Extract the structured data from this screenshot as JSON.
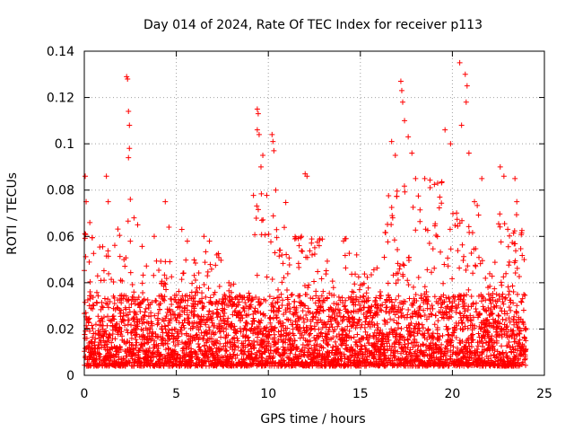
{
  "chart_data": {
    "type": "scatter",
    "title": "Day 014 of 2024, Rate Of TEC Index for receiver p113",
    "xlabel": "GPS time / hours",
    "ylabel": "ROTI / TECUs",
    "xlim": [
      0,
      25
    ],
    "ylim": [
      0,
      0.14
    ],
    "x_ticks": [
      0,
      5,
      10,
      15,
      20,
      25
    ],
    "x_tick_labels": [
      "0",
      "5",
      "10",
      "15",
      "20",
      "25"
    ],
    "y_ticks": [
      0,
      0.02,
      0.04,
      0.06,
      0.08,
      0.1,
      0.12,
      0.14
    ],
    "y_tick_labels": [
      "0",
      "0.02",
      "0.04",
      "0.06",
      "0.08",
      "0.1",
      "0.12",
      "0.14"
    ],
    "grid": true,
    "marker": "+",
    "marker_color": "#ff0000",
    "series": [
      {
        "name": "ROTI",
        "baseline_range": [
          0.004,
          0.035
        ],
        "notable_points": [
          {
            "x": 0.05,
            "y": 0.086
          },
          {
            "x": 0.1,
            "y": 0.075
          },
          {
            "x": 0.3,
            "y": 0.066
          },
          {
            "x": 1.2,
            "y": 0.086
          },
          {
            "x": 1.3,
            "y": 0.075
          },
          {
            "x": 2.3,
            "y": 0.129
          },
          {
            "x": 2.35,
            "y": 0.128
          },
          {
            "x": 2.4,
            "y": 0.114
          },
          {
            "x": 2.45,
            "y": 0.108
          },
          {
            "x": 2.45,
            "y": 0.098
          },
          {
            "x": 2.4,
            "y": 0.094
          },
          {
            "x": 2.5,
            "y": 0.076
          },
          {
            "x": 2.7,
            "y": 0.068
          },
          {
            "x": 2.9,
            "y": 0.065
          },
          {
            "x": 3.8,
            "y": 0.06
          },
          {
            "x": 4.4,
            "y": 0.075
          },
          {
            "x": 4.6,
            "y": 0.064
          },
          {
            "x": 5.3,
            "y": 0.063
          },
          {
            "x": 5.6,
            "y": 0.058
          },
          {
            "x": 6.5,
            "y": 0.06
          },
          {
            "x": 6.8,
            "y": 0.058
          },
          {
            "x": 7.2,
            "y": 0.052
          },
          {
            "x": 9.4,
            "y": 0.115
          },
          {
            "x": 9.45,
            "y": 0.113
          },
          {
            "x": 9.4,
            "y": 0.106
          },
          {
            "x": 9.5,
            "y": 0.104
          },
          {
            "x": 9.6,
            "y": 0.09
          },
          {
            "x": 9.7,
            "y": 0.095
          },
          {
            "x": 10.2,
            "y": 0.104
          },
          {
            "x": 10.25,
            "y": 0.101
          },
          {
            "x": 10.3,
            "y": 0.097
          },
          {
            "x": 10.4,
            "y": 0.08
          },
          {
            "x": 12.0,
            "y": 0.087
          },
          {
            "x": 12.1,
            "y": 0.086
          },
          {
            "x": 11.8,
            "y": 0.06
          },
          {
            "x": 12.8,
            "y": 0.059
          },
          {
            "x": 14.8,
            "y": 0.052
          },
          {
            "x": 16.3,
            "y": 0.051
          },
          {
            "x": 16.7,
            "y": 0.101
          },
          {
            "x": 16.9,
            "y": 0.095
          },
          {
            "x": 17.2,
            "y": 0.127
          },
          {
            "x": 17.25,
            "y": 0.123
          },
          {
            "x": 17.3,
            "y": 0.118
          },
          {
            "x": 17.4,
            "y": 0.11
          },
          {
            "x": 17.6,
            "y": 0.103
          },
          {
            "x": 17.8,
            "y": 0.096
          },
          {
            "x": 18.0,
            "y": 0.085
          },
          {
            "x": 18.5,
            "y": 0.085
          },
          {
            "x": 19.2,
            "y": 0.083
          },
          {
            "x": 19.6,
            "y": 0.106
          },
          {
            "x": 19.9,
            "y": 0.1
          },
          {
            "x": 20.4,
            "y": 0.135
          },
          {
            "x": 20.7,
            "y": 0.13
          },
          {
            "x": 20.8,
            "y": 0.125
          },
          {
            "x": 20.75,
            "y": 0.118
          },
          {
            "x": 20.5,
            "y": 0.108
          },
          {
            "x": 20.9,
            "y": 0.096
          },
          {
            "x": 21.2,
            "y": 0.075
          },
          {
            "x": 21.6,
            "y": 0.085
          },
          {
            "x": 22.6,
            "y": 0.09
          },
          {
            "x": 22.8,
            "y": 0.086
          },
          {
            "x": 23.4,
            "y": 0.085
          },
          {
            "x": 23.5,
            "y": 0.075
          },
          {
            "x": 23.9,
            "y": 0.05
          }
        ],
        "activity_regions": [
          {
            "x_from": 0.0,
            "x_to": 0.6,
            "max": 0.075
          },
          {
            "x_from": 0.6,
            "x_to": 1.6,
            "max": 0.065
          },
          {
            "x_from": 1.6,
            "x_to": 3.2,
            "max": 0.07
          },
          {
            "x_from": 3.2,
            "x_to": 5.0,
            "max": 0.05
          },
          {
            "x_from": 5.0,
            "x_to": 7.5,
            "max": 0.055
          },
          {
            "x_from": 7.5,
            "x_to": 9.0,
            "max": 0.04
          },
          {
            "x_from": 9.0,
            "x_to": 11.0,
            "max": 0.08
          },
          {
            "x_from": 11.0,
            "x_to": 14.5,
            "max": 0.06
          },
          {
            "x_from": 14.5,
            "x_to": 16.2,
            "max": 0.05
          },
          {
            "x_from": 16.2,
            "x_to": 19.5,
            "max": 0.085
          },
          {
            "x_from": 19.5,
            "x_to": 21.5,
            "max": 0.075
          },
          {
            "x_from": 21.5,
            "x_to": 22.5,
            "max": 0.05
          },
          {
            "x_from": 22.5,
            "x_to": 24.0,
            "max": 0.07
          }
        ]
      }
    ]
  }
}
